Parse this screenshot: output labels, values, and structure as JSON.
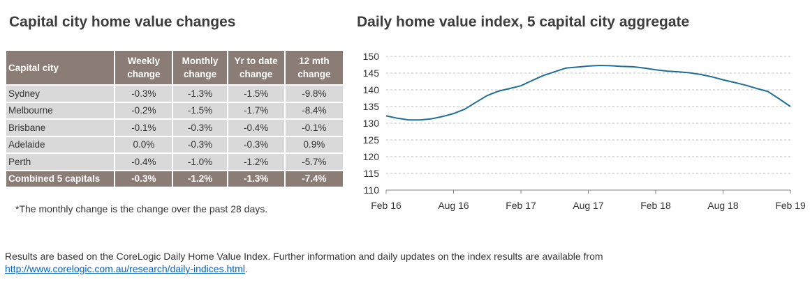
{
  "left_title": "Capital city home value changes",
  "table": {
    "headers": [
      [
        "Capital city"
      ],
      [
        "Weekly",
        "change"
      ],
      [
        "Monthly",
        "change"
      ],
      [
        "Yr to date",
        "change"
      ],
      [
        "12 mth",
        "change"
      ]
    ],
    "rows": [
      {
        "city": "Sydney",
        "weekly": "-0.3%",
        "monthly": "-1.3%",
        "ytd": "-1.5%",
        "annual": "-9.8%"
      },
      {
        "city": "Melbourne",
        "weekly": "-0.2%",
        "monthly": "-1.5%",
        "ytd": "-1.7%",
        "annual": "-8.4%"
      },
      {
        "city": "Brisbane",
        "weekly": "-0.1%",
        "monthly": "-0.3%",
        "ytd": "-0.4%",
        "annual": "-0.1%"
      },
      {
        "city": "Adelaide",
        "weekly": "0.0%",
        "monthly": "-0.3%",
        "ytd": "-0.3%",
        "annual": "0.9%"
      },
      {
        "city": "Perth",
        "weekly": "-0.4%",
        "monthly": "-1.0%",
        "ytd": "-1.2%",
        "annual": "-5.7%"
      }
    ],
    "total": {
      "city": "Combined 5 capitals",
      "weekly": "-0.3%",
      "monthly": "-1.2%",
      "ytd": "-1.3%",
      "annual": "-7.4%"
    }
  },
  "note": "*The monthly change is the change over the past 28 days.",
  "footer": {
    "text": "Results are based on the CoreLogic Daily Home Value Index.  Further information and daily updates on the index results are available from",
    "link": "http://www.corelogic.com.au/research/daily-indices.html",
    "after_link": "."
  },
  "colors": {
    "header_bg": "#8b7d76",
    "row_bg": "#d9d9d9",
    "line": "#1f6e94",
    "grid": "#bfbfbf"
  },
  "chart_data": {
    "type": "line",
    "title": "Daily home value index, 5 capital city aggregate",
    "xlabel": "",
    "ylabel": "",
    "x_ticks": [
      "Feb 16",
      "Aug 16",
      "Feb 17",
      "Aug 17",
      "Feb 18",
      "Aug 18",
      "Feb 19"
    ],
    "ylim": [
      110,
      150
    ],
    "y_ticks": [
      110,
      115,
      120,
      125,
      130,
      135,
      140,
      145,
      150
    ],
    "grid": "horizontal dashed",
    "series": [
      {
        "x": [
          "2016-02",
          "2016-03",
          "2016-04",
          "2016-05",
          "2016-06",
          "2016-07",
          "2016-08",
          "2016-09",
          "2016-10",
          "2016-11",
          "2016-12",
          "2017-01",
          "2017-02",
          "2017-03",
          "2017-04",
          "2017-05",
          "2017-06",
          "2017-07",
          "2017-08",
          "2017-09",
          "2017-10",
          "2017-11",
          "2017-12",
          "2018-01",
          "2018-02",
          "2018-03",
          "2018-04",
          "2018-05",
          "2018-06",
          "2018-07",
          "2018-08",
          "2018-09",
          "2018-10",
          "2018-11",
          "2018-12",
          "2019-01",
          "2019-02"
        ],
        "values": [
          132.2,
          131.5,
          131.0,
          131.0,
          131.3,
          132.0,
          132.9,
          134.2,
          136.3,
          138.3,
          139.6,
          140.4,
          141.2,
          142.8,
          144.3,
          145.4,
          146.5,
          146.8,
          147.1,
          147.3,
          147.2,
          147.0,
          146.9,
          146.5,
          146.0,
          145.6,
          145.4,
          145.1,
          144.6,
          143.9,
          143.0,
          142.2,
          141.4,
          140.4,
          139.5,
          137.3,
          135.0
        ]
      }
    ]
  }
}
